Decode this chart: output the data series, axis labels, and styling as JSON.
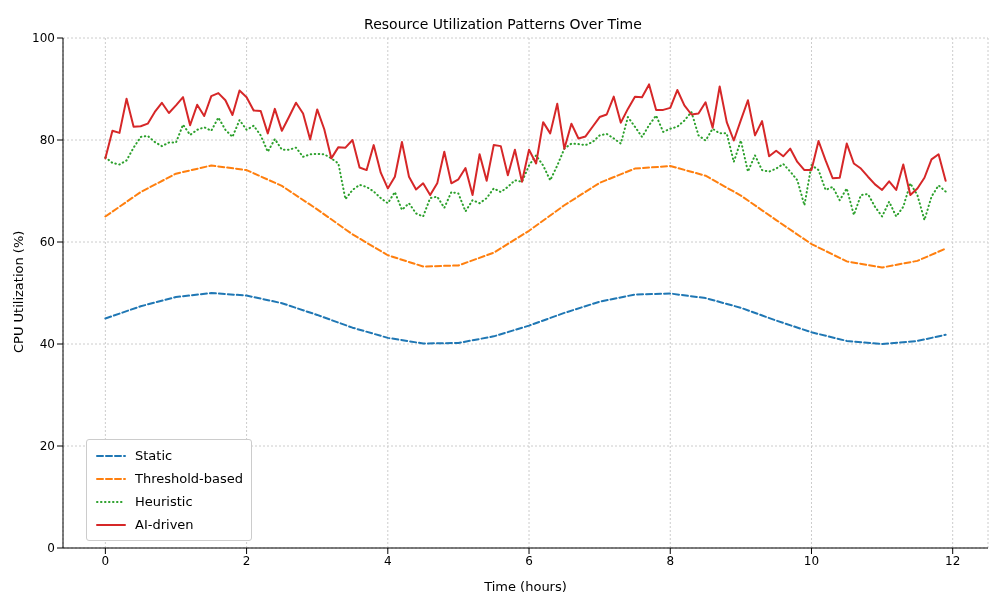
{
  "chart_data": {
    "type": "line",
    "title": "Resource Utilization Patterns Over Time",
    "xlabel": "Time (hours)",
    "ylabel": "CPU Utilization (%)",
    "xlim": [
      -0.6,
      12.5
    ],
    "xticks": [
      0,
      2,
      4,
      6,
      8,
      10,
      12
    ],
    "ylim": [
      0,
      100
    ],
    "yticks": [
      0,
      20,
      40,
      60,
      80,
      100
    ],
    "grid": true,
    "legend": "bottom left",
    "marker": "none",
    "series": [
      {
        "name": "Static",
        "color": "#1f77b4",
        "line_style": "dashed",
        "x": [
          0,
          0.5,
          1,
          1.5,
          2,
          2.5,
          3,
          3.5,
          4,
          4.5,
          5,
          5.5,
          6,
          6.5,
          7,
          7.5,
          8,
          8.5,
          9,
          9.5,
          10,
          10.5,
          11,
          11.5,
          11.9
        ],
        "values": [
          45,
          47.4,
          49.2,
          50,
          49.5,
          48,
          45.7,
          43.2,
          41.2,
          40.1,
          40.2,
          41.5,
          43.6,
          46.1,
          48.3,
          49.7,
          49.9,
          49,
          47.1,
          44.6,
          42.3,
          40.6,
          40,
          40.6,
          41.8
        ]
      },
      {
        "name": "Threshold-based",
        "color": "#ff7f0e",
        "line_style": "dashed",
        "x": [
          0,
          0.5,
          1,
          1.5,
          2,
          2.5,
          3,
          3.5,
          4,
          4.5,
          5,
          5.5,
          6,
          6.5,
          7,
          7.5,
          8,
          8.5,
          9,
          9.5,
          10,
          10.5,
          11,
          11.5,
          11.9
        ],
        "values": [
          65,
          69.8,
          73.4,
          75,
          74.1,
          71,
          66.4,
          61.5,
          57.4,
          55.2,
          55.4,
          57.9,
          62.2,
          67.2,
          71.6,
          74.4,
          74.9,
          73,
          69.1,
          64.3,
          59.6,
          56.2,
          55,
          56.3,
          58.7
        ]
      },
      {
        "name": "Heuristic",
        "color": "#2ca02c",
        "line_style": "dotted",
        "x": [
          0,
          0.1,
          0.2,
          0.3,
          0.4,
          0.5,
          0.6,
          0.7,
          0.8,
          0.9,
          1,
          1.1,
          1.2,
          1.3,
          1.4,
          1.5,
          1.6,
          1.7,
          1.8,
          1.9,
          2,
          2.1,
          2.2,
          2.3,
          2.4,
          2.5,
          2.6,
          2.7,
          2.8,
          2.9,
          3,
          3.1,
          3.2,
          3.3,
          3.4,
          3.5,
          3.6,
          3.7,
          3.8,
          3.9,
          4,
          4.1,
          4.2,
          4.3,
          4.4,
          4.5,
          4.6,
          4.7,
          4.8,
          4.9,
          5,
          5.1,
          5.2,
          5.3,
          5.4,
          5.5,
          5.6,
          5.7,
          5.8,
          5.9,
          6,
          6.1,
          6.2,
          6.3,
          6.4,
          6.5,
          6.6,
          6.7,
          6.8,
          6.9,
          7,
          7.1,
          7.2,
          7.3,
          7.4,
          7.5,
          7.6,
          7.7,
          7.8,
          7.9,
          8,
          8.1,
          8.2,
          8.3,
          8.4,
          8.5,
          8.6,
          8.7,
          8.8,
          8.9,
          9,
          9.1,
          9.2,
          9.3,
          9.4,
          9.5,
          9.6,
          9.7,
          9.8,
          9.9,
          10,
          10.1,
          10.2,
          10.3,
          10.4,
          10.5,
          10.6,
          10.7,
          10.8,
          10.9,
          11,
          11.1,
          11.2,
          11.3,
          11.4,
          11.5,
          11.6,
          11.7,
          11.8,
          11.9
        ],
        "values": [
          76.6,
          75.5,
          75.2,
          76,
          78.5,
          80.6,
          80.8,
          79.6,
          78.8,
          79.5,
          79.5,
          83,
          81,
          82,
          82.5,
          81.8,
          84.4,
          82,
          80.6,
          83.9,
          82,
          82.8,
          80.9,
          77.7,
          80.2,
          78.1,
          78.1,
          78.5,
          76.7,
          77.2,
          77.3,
          77.2,
          76.4,
          75.4,
          68.4,
          70.2,
          71.2,
          70.8,
          69.9,
          68.6,
          67.6,
          69.8,
          66.3,
          67.6,
          65.6,
          65,
          68.6,
          68.9,
          66.7,
          69.8,
          69.5,
          66,
          68.2,
          67.6,
          68.6,
          70.5,
          69.8,
          70.8,
          72.1,
          71.8,
          75,
          77,
          75,
          72.1,
          75,
          78.3,
          79.3,
          79.2,
          79,
          79.6,
          80.9,
          81.2,
          80.3,
          79.3,
          84.5,
          82.6,
          80.6,
          82.9,
          84.8,
          81.6,
          82.2,
          82.6,
          83.8,
          85.5,
          80.9,
          79.9,
          82.2,
          81.3,
          81.3,
          75.7,
          79.9,
          73.8,
          77,
          74.1,
          73.8,
          74.4,
          75.3,
          73.8,
          72.1,
          67.2,
          75.1,
          74.1,
          70.2,
          70.8,
          68.2,
          70.5,
          65.3,
          69.2,
          69.4,
          66.9,
          65,
          67.9,
          65,
          66.9,
          71.5,
          69.2,
          64.3,
          68.9,
          71.1,
          69.9
        ]
      },
      {
        "name": "AI-driven",
        "color": "#d62728",
        "line_style": "solid",
        "x": [
          0,
          0.1,
          0.2,
          0.3,
          0.4,
          0.5,
          0.6,
          0.7,
          0.8,
          0.9,
          1,
          1.1,
          1.2,
          1.3,
          1.4,
          1.5,
          1.6,
          1.7,
          1.8,
          1.9,
          2,
          2.1,
          2.2,
          2.3,
          2.4,
          2.5,
          2.6,
          2.7,
          2.8,
          2.9,
          3,
          3.1,
          3.2,
          3.3,
          3.4,
          3.5,
          3.6,
          3.7,
          3.8,
          3.9,
          4,
          4.1,
          4.2,
          4.3,
          4.4,
          4.5,
          4.6,
          4.7,
          4.8,
          4.9,
          5,
          5.1,
          5.2,
          5.3,
          5.4,
          5.5,
          5.6,
          5.7,
          5.8,
          5.9,
          6,
          6.1,
          6.2,
          6.3,
          6.4,
          6.5,
          6.6,
          6.7,
          6.8,
          6.9,
          7,
          7.1,
          7.2,
          7.3,
          7.4,
          7.5,
          7.6,
          7.7,
          7.8,
          7.9,
          8,
          8.1,
          8.2,
          8.3,
          8.4,
          8.5,
          8.6,
          8.7,
          8.8,
          8.9,
          9,
          9.1,
          9.2,
          9.3,
          9.4,
          9.5,
          9.6,
          9.7,
          9.8,
          9.9,
          10,
          10.1,
          10.2,
          10.3,
          10.4,
          10.5,
          10.6,
          10.7,
          10.8,
          10.9,
          11,
          11.1,
          11.2,
          11.3,
          11.4,
          11.5,
          11.6,
          11.7,
          11.8,
          11.9
        ],
        "values": [
          76.4,
          81.8,
          81.4,
          88.1,
          82.6,
          82.7,
          83.2,
          85.5,
          87.3,
          85.3,
          86.8,
          88.4,
          82.9,
          86.9,
          84.7,
          88.6,
          89.2,
          87.8,
          84.9,
          89.7,
          88.4,
          85.8,
          85.7,
          81.3,
          86.1,
          81.8,
          84.5,
          87.3,
          85.2,
          80.1,
          86,
          82.1,
          76.4,
          78.6,
          78.5,
          80,
          74.6,
          74.1,
          79,
          73.6,
          70.5,
          72.8,
          79.6,
          72.8,
          70.3,
          71.5,
          69.2,
          71.5,
          77.7,
          71.5,
          72.3,
          74.5,
          69.2,
          77.2,
          72,
          79,
          78.8,
          73.1,
          78.1,
          71.8,
          78.1,
          75.4,
          83.5,
          81.3,
          87.1,
          78.3,
          83.2,
          80.3,
          80.7,
          82.6,
          84.5,
          85,
          88.5,
          83.4,
          86.1,
          88.5,
          88.4,
          90.9,
          85.9,
          85.9,
          86.3,
          89.8,
          86.8,
          85,
          85.2,
          87.4,
          82.4,
          90.5,
          83.5,
          79.9,
          83.9,
          87.8,
          80.9,
          83.7,
          76.8,
          77.9,
          76.8,
          78.3,
          75.7,
          74.1,
          74.1,
          79.8,
          76,
          72.5,
          72.6,
          79.3,
          75.4,
          74.4,
          72.8,
          71.3,
          70.2,
          71.9,
          70.2,
          75.2,
          69.2,
          70.5,
          72.6,
          76.2,
          77.2,
          72
        ]
      }
    ]
  }
}
